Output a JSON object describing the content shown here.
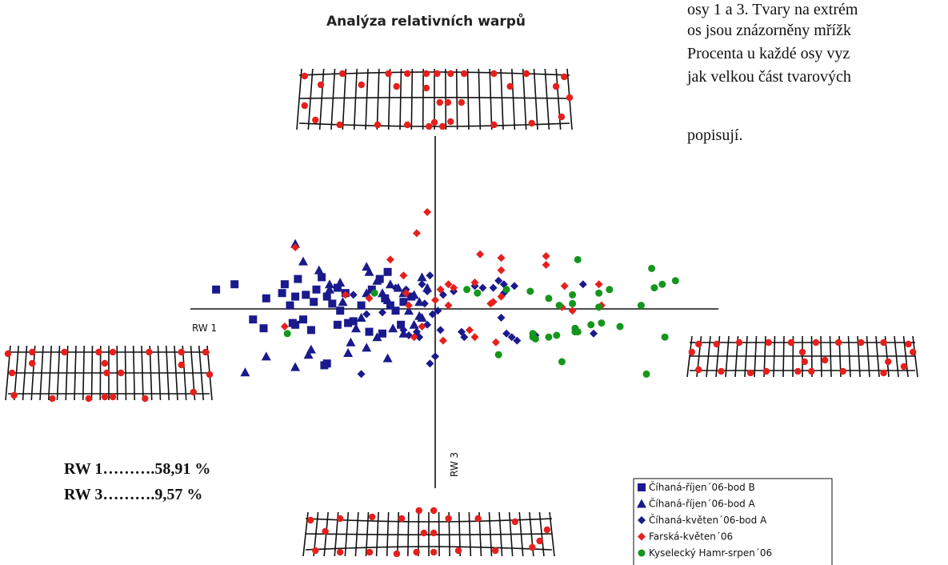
{
  "chart_data": {
    "type": "scatter",
    "title": "Analýza relativních warpů",
    "xlabel": "RW 1",
    "ylabel": "RW 3",
    "xlim": [
      -1,
      1
    ],
    "ylim": [
      -1,
      1
    ],
    "grid": false,
    "legend_position": "bottom-right",
    "series": [
      {
        "name": "Číhaná-říjen´06-bod B",
        "marker": "square",
        "color": "#1a1a8c",
        "points": [
          [
            -0.83,
            0.11
          ],
          [
            -0.76,
            0.14
          ],
          [
            -0.64,
            0.06
          ],
          [
            -0.57,
            0.14
          ],
          [
            -0.58,
            0.09
          ],
          [
            -0.53,
            0.07
          ],
          [
            -0.55,
            0.02
          ],
          [
            -0.52,
            0.17
          ],
          [
            -0.49,
            0.08
          ],
          [
            -0.46,
            0.04
          ],
          [
            -0.45,
            0.11
          ],
          [
            -0.43,
            0.18
          ],
          [
            -0.41,
            0.07
          ],
          [
            -0.39,
            0.03
          ],
          [
            -0.37,
            0.12
          ],
          [
            -0.34,
            0.09
          ],
          [
            -0.36,
            -0.01
          ],
          [
            -0.31,
            -0.07
          ],
          [
            -0.24,
            0.11
          ],
          [
            -0.21,
            0.17
          ],
          [
            -0.18,
            0.21
          ],
          [
            -0.19,
            0.06
          ],
          [
            -0.17,
            0.02
          ],
          [
            -0.15,
            -0.01
          ],
          [
            -0.12,
            0.04
          ],
          [
            -0.09,
            0.07
          ],
          [
            -0.69,
            -0.06
          ],
          [
            -0.65,
            -0.11
          ],
          [
            -0.53,
            -0.09
          ],
          [
            -0.5,
            -0.06
          ],
          [
            -0.47,
            -0.12
          ],
          [
            -0.37,
            -0.09
          ],
          [
            -0.33,
            -0.08
          ],
          [
            -0.25,
            -0.13
          ],
          [
            -0.2,
            -0.14
          ],
          [
            -0.13,
            -0.09
          ],
          [
            -0.42,
            -0.32
          ],
          [
            -0.41,
            -0.31
          ],
          [
            -0.54,
            -0.08
          ],
          [
            -0.28,
            0.02
          ]
        ]
      },
      {
        "name": "Číhaná-říjen´06-bod A",
        "marker": "triangle",
        "color": "#1a1a8c",
        "points": [
          [
            -0.53,
            0.37
          ],
          [
            -0.5,
            0.27
          ],
          [
            -0.44,
            0.22
          ],
          [
            -0.4,
            0.14
          ],
          [
            -0.36,
            0.15
          ],
          [
            -0.26,
            0.24
          ],
          [
            -0.25,
            0.21
          ],
          [
            -0.22,
            0.16
          ],
          [
            -0.26,
            0.09
          ],
          [
            -0.2,
            0.09
          ],
          [
            -0.18,
            0.05
          ],
          [
            -0.17,
            0.14
          ],
          [
            -0.14,
            0.12
          ],
          [
            -0.12,
            0.09
          ],
          [
            -0.08,
            0.08
          ],
          [
            -0.06,
            0.04
          ],
          [
            -0.05,
            0.18
          ],
          [
            -0.03,
            0.12
          ],
          [
            -0.1,
            -0.01
          ],
          [
            -0.06,
            -0.04
          ],
          [
            -0.28,
            -0.05
          ],
          [
            -0.3,
            -0.11
          ],
          [
            -0.32,
            -0.19
          ],
          [
            -0.26,
            -0.22
          ],
          [
            -0.22,
            -0.16
          ],
          [
            -0.16,
            -0.11
          ],
          [
            -0.12,
            -0.14
          ],
          [
            -0.08,
            -0.09
          ],
          [
            -0.05,
            -0.05
          ],
          [
            -0.48,
            -0.26
          ],
          [
            -0.53,
            -0.33
          ],
          [
            -0.47,
            -0.23
          ],
          [
            -0.33,
            -0.25
          ],
          [
            -0.18,
            -0.28
          ],
          [
            -0.64,
            -0.27
          ],
          [
            -0.72,
            -0.36
          ],
          [
            -0.35,
            0.04
          ],
          [
            -0.4,
            0.11
          ]
        ]
      },
      {
        "name": "Číhaná-květen´06-bod A",
        "marker": "diamond",
        "color": "#1a1a8c",
        "points": [
          [
            -0.31,
            0.08
          ],
          [
            -0.26,
            -0.03
          ],
          [
            -0.2,
            -0.02
          ],
          [
            -0.15,
            0.12
          ],
          [
            -0.11,
            0.11
          ],
          [
            -0.05,
            0.14
          ],
          [
            -0.02,
            0.19
          ],
          [
            -0.03,
            0.1
          ],
          [
            -0.04,
            0.03
          ],
          [
            -0.1,
            -0.15
          ],
          [
            -0.12,
            -0.12
          ],
          [
            -0.07,
            -0.13
          ],
          [
            -0.03,
            -0.09
          ],
          [
            -0.06,
            -0.16
          ],
          [
            -0.01,
            -0.03
          ],
          [
            0.01,
            -0.01
          ],
          [
            0.0,
            -0.27
          ],
          [
            -0.02,
            -0.31
          ],
          [
            -0.28,
            -0.37
          ],
          [
            0.02,
            -0.12
          ],
          [
            0.07,
            0.1
          ],
          [
            0.15,
            0.13
          ],
          [
            0.18,
            0.12
          ],
          [
            0.26,
            0.09
          ],
          [
            0.26,
            0.14
          ],
          [
            0.25,
            -0.05
          ],
          [
            0.27,
            -0.14
          ],
          [
            0.29,
            -0.16
          ],
          [
            0.31,
            -0.18
          ],
          [
            0.22,
            0.12
          ],
          [
            0.3,
            0.13
          ],
          [
            0.1,
            -0.13
          ],
          [
            0.11,
            -0.16
          ],
          [
            0.38,
            -0.15
          ],
          [
            0.6,
            -0.14
          ],
          [
            0.56,
            0.14
          ],
          [
            0.24,
            0.16
          ],
          [
            0.03,
            0.08
          ]
        ]
      },
      {
        "name": "Farská-květen´06",
        "marker": "diamond",
        "color": "#e5201c",
        "points": [
          [
            -0.03,
            0.55
          ],
          [
            -0.07,
            0.43
          ],
          [
            -0.53,
            0.35
          ],
          [
            -0.17,
            0.28
          ],
          [
            0.17,
            0.31
          ],
          [
            0.25,
            0.29
          ],
          [
            0.42,
            0.3
          ],
          [
            0.42,
            0.25
          ],
          [
            0.25,
            0.22
          ],
          [
            0.15,
            0.15
          ],
          [
            0.05,
            0.14
          ],
          [
            0.02,
            0.11
          ],
          [
            -0.12,
            0.19
          ],
          [
            -0.11,
            0.09
          ],
          [
            -0.34,
            0.08
          ],
          [
            -0.25,
            0.06
          ],
          [
            -0.1,
            0.02
          ],
          [
            0.0,
            0.05
          ],
          [
            0.05,
            0.02
          ],
          [
            0.21,
            0.03
          ],
          [
            0.25,
            0.07
          ],
          [
            0.49,
            0.13
          ],
          [
            0.62,
            0.14
          ],
          [
            0.48,
            0.01
          ],
          [
            0.52,
            -0.01
          ],
          [
            0.63,
            0.02
          ],
          [
            0.15,
            -0.16
          ],
          [
            0.23,
            -0.19
          ],
          [
            0.13,
            -0.12
          ],
          [
            -0.05,
            -0.1
          ],
          [
            -0.08,
            -0.16
          ],
          [
            -0.57,
            -0.1
          ],
          [
            0.03,
            -0.18
          ],
          [
            0.07,
            0.12
          ],
          [
            0.22,
            0.04
          ]
        ]
      },
      {
        "name": "Kyselecký Hamr-srpen´06",
        "marker": "circle",
        "color": "#14961c",
        "points": [
          [
            0.12,
            0.11
          ],
          [
            0.16,
            0.09
          ],
          [
            0.27,
            0.11
          ],
          [
            0.36,
            0.1
          ],
          [
            0.43,
            0.06
          ],
          [
            0.52,
            0.08
          ],
          [
            0.47,
            0.02
          ],
          [
            0.52,
            0.03
          ],
          [
            0.62,
            0.01
          ],
          [
            0.78,
            0.02
          ],
          [
            0.82,
            0.23
          ],
          [
            0.83,
            0.12
          ],
          [
            0.86,
            0.14
          ],
          [
            0.91,
            0.16
          ],
          [
            0.54,
            0.28
          ],
          [
            0.62,
            0.09
          ],
          [
            0.66,
            0.11
          ],
          [
            -0.23,
            0.09
          ],
          [
            -0.56,
            -0.14
          ],
          [
            0.53,
            -0.11
          ],
          [
            0.54,
            -0.13
          ],
          [
            0.59,
            -0.09
          ],
          [
            0.63,
            -0.08
          ],
          [
            0.7,
            -0.1
          ],
          [
            0.87,
            -0.16
          ],
          [
            0.37,
            -0.14
          ],
          [
            0.37,
            -0.16
          ],
          [
            0.38,
            -0.17
          ],
          [
            0.43,
            -0.16
          ],
          [
            0.46,
            -0.15
          ],
          [
            0.24,
            -0.26
          ],
          [
            0.48,
            -0.3
          ],
          [
            0.8,
            -0.37
          ],
          [
            0.53,
            -0.13
          ]
        ]
      }
    ]
  },
  "axis_labels": {
    "rw1": "RW 1",
    "rw3": "RW 3"
  },
  "percentages": {
    "rw1": "RW 1……….58,91 %",
    "rw3": "RW 3……….9,57 %"
  },
  "side_text": {
    "line1": "osy 1 a 3. Tvary na extrém",
    "line2": "os jsou znázorněny mřížk",
    "line3": "Procenta u každé osy vyz",
    "line4": "jak velkou část tvarových",
    "line5": "popisují."
  },
  "colors": {
    "blue": "#1a1a8c",
    "red": "#e5201c",
    "green": "#14961c",
    "axis": "#111111"
  },
  "marker_icons": {
    "square": "square-icon",
    "triangle": "triangle-icon",
    "diamond": "diamond-icon",
    "circle": "circle-icon"
  }
}
